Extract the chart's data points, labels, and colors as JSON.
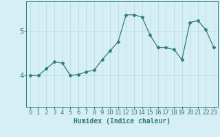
{
  "x": [
    0,
    1,
    2,
    3,
    4,
    5,
    6,
    7,
    8,
    9,
    10,
    11,
    12,
    13,
    14,
    15,
    16,
    17,
    18,
    19,
    20,
    21,
    22,
    23
  ],
  "y": [
    4.0,
    4.0,
    4.15,
    4.3,
    4.28,
    4.0,
    4.02,
    4.08,
    4.12,
    4.35,
    4.55,
    4.75,
    5.35,
    5.35,
    5.3,
    4.9,
    4.62,
    4.62,
    4.58,
    4.35,
    5.18,
    5.22,
    5.02,
    4.62
  ],
  "line_color": "#2e7d6e",
  "marker": "D",
  "marker_size": 2.5,
  "bg_color": "#d6eff5",
  "grid_color": "#b8dce6",
  "xlabel": "Humidex (Indice chaleur)",
  "yticks": [
    4,
    5
  ],
  "ylim": [
    3.3,
    5.65
  ],
  "xlim": [
    -0.5,
    23.5
  ],
  "label_fontsize": 7,
  "tick_fontsize": 6.5
}
